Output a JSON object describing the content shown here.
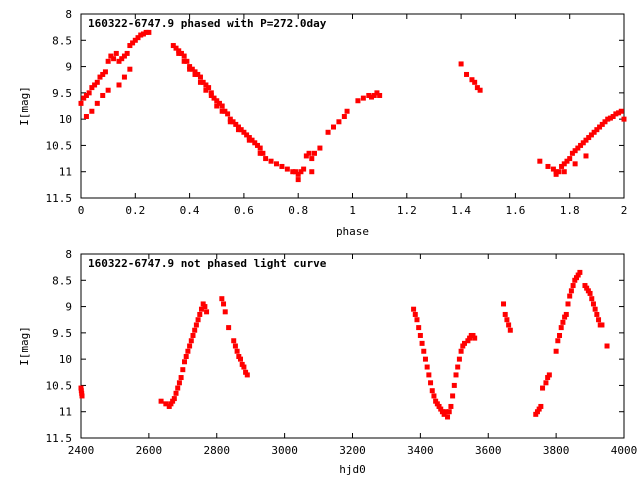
{
  "chart_data": [
    {
      "type": "scatter",
      "title": "160322-6747.9 phased with P=272.0day",
      "xlabel": "phase",
      "ylabel": "I[mag]",
      "xlim": [
        0,
        2
      ],
      "ylim": [
        8,
        11.5
      ],
      "y_inverted": true,
      "grid": false,
      "legend": "none",
      "marker_color": "#ff0000",
      "xticks": [
        "0",
        "0.2",
        "0.4",
        "0.6",
        "0.8",
        "1",
        "1.2",
        "1.4",
        "1.6",
        "1.8",
        "2"
      ],
      "yticks": [
        "8",
        "8.5",
        "9",
        "9.5",
        "10",
        "10.5",
        "11",
        "11.5"
      ],
      "series": [
        {
          "x": [
            0.0,
            0.01,
            0.02,
            0.03,
            0.04,
            0.05,
            0.06,
            0.07,
            0.08,
            0.09,
            0.1,
            0.11,
            0.12,
            0.13,
            0.14,
            0.15,
            0.16,
            0.17,
            0.18,
            0.19,
            0.2,
            0.21,
            0.22,
            0.23,
            0.24,
            0.25,
            0.34,
            0.35,
            0.36,
            0.37,
            0.38,
            0.39,
            0.4,
            0.41,
            0.42,
            0.43,
            0.44,
            0.45,
            0.46,
            0.47,
            0.48,
            0.49,
            0.5,
            0.51,
            0.52,
            0.53,
            0.54,
            0.55,
            0.56,
            0.57,
            0.58,
            0.59,
            0.6,
            0.61,
            0.62,
            0.63,
            0.64,
            0.65,
            0.66,
            0.67,
            0.68,
            0.7,
            0.72,
            0.74,
            0.76,
            0.78,
            0.79,
            0.8,
            0.81,
            0.82,
            0.83,
            0.84,
            0.85,
            0.86,
            0.88,
            0.91,
            0.93,
            0.95,
            0.97,
            0.98,
            1.02,
            1.04,
            1.06,
            1.07,
            1.08,
            1.09,
            1.1,
            1.4,
            1.42,
            1.44,
            1.45,
            1.46,
            1.47,
            1.69,
            1.72,
            1.74,
            1.75,
            1.76,
            1.77,
            1.78,
            1.79,
            1.8,
            1.81,
            1.82,
            1.83,
            1.84,
            1.85,
            1.86,
            1.87,
            1.88,
            1.89,
            1.9,
            1.91,
            1.92,
            1.93,
            1.94,
            1.95,
            1.96,
            1.97,
            1.98,
            1.99,
            2.0,
            0.02,
            0.04,
            0.06,
            0.08,
            0.1,
            0.14,
            0.16,
            0.18,
            0.36,
            0.38,
            0.4,
            0.42,
            0.44,
            0.46,
            0.48,
            0.5,
            0.52,
            0.55,
            0.58,
            0.62,
            0.66,
            0.8,
            0.85,
            1.75,
            1.78,
            1.82,
            1.86
          ],
          "y": [
            9.7,
            9.6,
            9.55,
            9.5,
            9.4,
            9.35,
            9.3,
            9.2,
            9.15,
            9.1,
            8.9,
            8.8,
            8.85,
            8.75,
            8.9,
            8.85,
            8.8,
            8.75,
            8.6,
            8.55,
            8.5,
            8.45,
            8.4,
            8.38,
            8.35,
            8.35,
            8.6,
            8.65,
            8.7,
            8.75,
            8.8,
            8.9,
            9.0,
            9.05,
            9.1,
            9.15,
            9.2,
            9.3,
            9.35,
            9.4,
            9.5,
            9.6,
            9.65,
            9.7,
            9.75,
            9.85,
            9.9,
            10.0,
            10.05,
            10.1,
            10.15,
            10.2,
            10.25,
            10.3,
            10.35,
            10.4,
            10.45,
            10.5,
            10.55,
            10.65,
            10.75,
            10.8,
            10.85,
            10.9,
            10.95,
            11.0,
            11.0,
            11.05,
            11.0,
            10.95,
            10.7,
            10.65,
            10.75,
            10.65,
            10.55,
            10.25,
            10.15,
            10.05,
            9.95,
            9.85,
            9.65,
            9.6,
            9.55,
            9.58,
            9.55,
            9.5,
            9.55,
            8.95,
            9.15,
            9.25,
            9.3,
            9.4,
            9.45,
            10.8,
            10.9,
            10.95,
            11.0,
            11.0,
            10.9,
            10.85,
            10.8,
            10.75,
            10.65,
            10.6,
            10.55,
            10.5,
            10.45,
            10.4,
            10.35,
            10.3,
            10.25,
            10.2,
            10.15,
            10.1,
            10.05,
            10.0,
            9.98,
            9.95,
            9.9,
            9.88,
            9.85,
            10.0,
            9.95,
            9.85,
            9.7,
            9.55,
            9.45,
            9.35,
            9.2,
            9.05,
            8.75,
            8.9,
            9.05,
            9.15,
            9.3,
            9.45,
            9.55,
            9.75,
            9.85,
            10.05,
            10.2,
            10.4,
            10.65,
            11.15,
            11.0,
            11.05,
            11.0,
            10.85,
            10.7
          ]
        }
      ]
    },
    {
      "type": "scatter",
      "title": "160322-6747.9 not phased light curve",
      "xlabel": "hjd0",
      "ylabel": "I[mag]",
      "xlim": [
        2400,
        4000
      ],
      "ylim": [
        8,
        11.5
      ],
      "y_inverted": true,
      "grid": false,
      "legend": "none",
      "marker_color": "#ff0000",
      "xticks": [
        "2400",
        "2600",
        "2800",
        "3000",
        "3200",
        "3400",
        "3600",
        "3800",
        "4000"
      ],
      "yticks": [
        "8",
        "8.5",
        "9",
        "9.5",
        "10",
        "10.5",
        "11",
        "11.5"
      ],
      "series": [
        {
          "x": [
            2400,
            2401,
            2402,
            2403,
            2636,
            2650,
            2660,
            2665,
            2670,
            2675,
            2680,
            2685,
            2690,
            2695,
            2700,
            2705,
            2710,
            2715,
            2720,
            2725,
            2730,
            2735,
            2740,
            2745,
            2750,
            2755,
            2760,
            2765,
            2770,
            2815,
            2820,
            2825,
            2835,
            2850,
            2855,
            2860,
            2865,
            2870,
            2875,
            2880,
            2885,
            2890,
            3380,
            3385,
            3390,
            3395,
            3400,
            3405,
            3410,
            3415,
            3420,
            3425,
            3430,
            3435,
            3440,
            3445,
            3450,
            3455,
            3460,
            3465,
            3470,
            3475,
            3480,
            3485,
            3490,
            3495,
            3500,
            3505,
            3510,
            3515,
            3520,
            3525,
            3530,
            3540,
            3545,
            3550,
            3555,
            3560,
            3645,
            3650,
            3655,
            3660,
            3665,
            3740,
            3745,
            3750,
            3755,
            3760,
            3770,
            3775,
            3780,
            3800,
            3805,
            3810,
            3815,
            3820,
            3825,
            3830,
            3835,
            3840,
            3845,
            3850,
            3855,
            3860,
            3865,
            3870,
            3885,
            3890,
            3895,
            3900,
            3905,
            3910,
            3915,
            3920,
            3925,
            3930,
            3935,
            3950
          ],
          "y": [
            10.55,
            10.6,
            10.65,
            10.7,
            10.8,
            10.85,
            10.9,
            10.85,
            10.8,
            10.75,
            10.65,
            10.55,
            10.45,
            10.35,
            10.2,
            10.05,
            9.95,
            9.85,
            9.75,
            9.65,
            9.55,
            9.45,
            9.35,
            9.25,
            9.15,
            9.05,
            8.95,
            9.0,
            9.1,
            8.85,
            8.95,
            9.1,
            9.4,
            9.65,
            9.75,
            9.85,
            9.95,
            10.0,
            10.1,
            10.15,
            10.25,
            10.3,
            9.05,
            9.15,
            9.25,
            9.4,
            9.55,
            9.7,
            9.85,
            10.0,
            10.15,
            10.3,
            10.45,
            10.6,
            10.7,
            10.8,
            10.85,
            10.9,
            10.95,
            11.0,
            11.05,
            11.0,
            11.1,
            11.0,
            10.9,
            10.7,
            10.5,
            10.3,
            10.15,
            10.0,
            9.85,
            9.75,
            9.7,
            9.65,
            9.6,
            9.55,
            9.55,
            9.6,
            8.95,
            9.15,
            9.25,
            9.35,
            9.45,
            11.05,
            11.0,
            10.95,
            10.9,
            10.55,
            10.45,
            10.35,
            10.3,
            9.85,
            9.65,
            9.55,
            9.4,
            9.3,
            9.2,
            9.15,
            8.95,
            8.8,
            8.7,
            8.6,
            8.5,
            8.45,
            8.4,
            8.35,
            8.6,
            8.65,
            8.7,
            8.75,
            8.85,
            8.95,
            9.05,
            9.15,
            9.25,
            9.35,
            9.35,
            9.75
          ]
        }
      ]
    }
  ]
}
